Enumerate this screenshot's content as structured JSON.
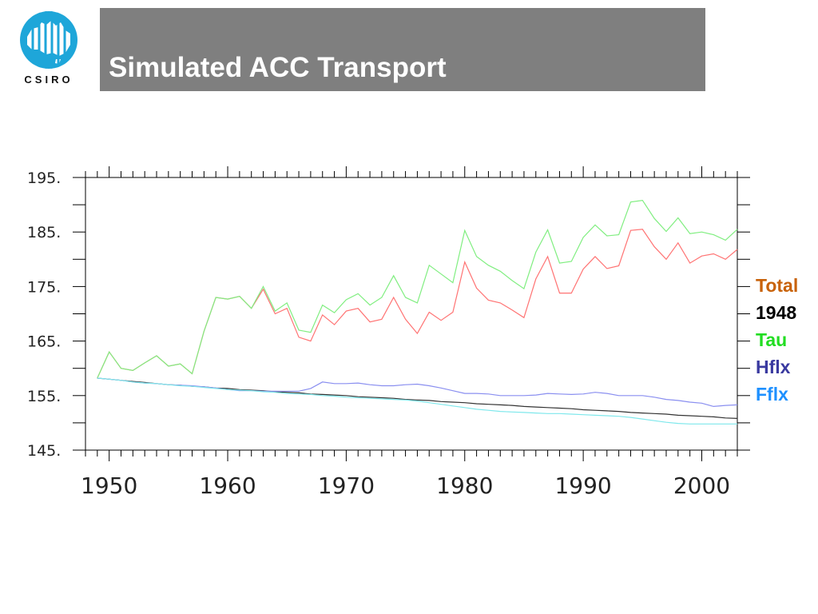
{
  "header": {
    "title": "Simulated ACC Transport",
    "logo_text": "CSIRO",
    "bar_color": "#7f7f7f",
    "logo_color": "#1ea6d9"
  },
  "chart_data": {
    "type": "line",
    "title": "Simulated ACC Transport",
    "xlabel": "",
    "ylabel": "",
    "xlim": [
      1948,
      2003
    ],
    "ylim": [
      145,
      195
    ],
    "x_ticks": [
      1950,
      1960,
      1970,
      1980,
      1990,
      2000
    ],
    "x_tick_labels": [
      "1950",
      "1960",
      "1970",
      "1980",
      "1990",
      "2000"
    ],
    "y_ticks": [
      145,
      155,
      165,
      175,
      185,
      195
    ],
    "y_tick_labels": [
      "145.",
      "155.",
      "165.",
      "175.",
      "185.",
      "195."
    ],
    "grid": false,
    "legend_position": "right",
    "x": [
      1949,
      1950,
      1951,
      1952,
      1953,
      1954,
      1955,
      1956,
      1957,
      1958,
      1959,
      1960,
      1961,
      1962,
      1963,
      1964,
      1965,
      1966,
      1967,
      1968,
      1969,
      1970,
      1971,
      1972,
      1973,
      1974,
      1975,
      1976,
      1977,
      1978,
      1979,
      1980,
      1981,
      1982,
      1983,
      1984,
      1985,
      1986,
      1987,
      1988,
      1989,
      1990,
      1991,
      1992,
      1993,
      1994,
      1995,
      1996,
      1997,
      1998,
      1999,
      2000,
      2001,
      2002,
      2003
    ],
    "series": [
      {
        "name": "Total",
        "color": "#ff7373",
        "values": [
          158.2,
          163,
          160,
          159.6,
          161,
          162.3,
          160.4,
          160.8,
          159,
          166.8,
          173,
          172.7,
          173.2,
          171,
          174.5,
          170,
          171,
          165.7,
          165,
          169.8,
          168,
          170.5,
          171,
          168.5,
          169,
          173,
          169,
          166.4,
          170.3,
          168.8,
          170.3,
          179.5,
          174.7,
          172.5,
          172,
          170.7,
          169.3,
          176.4,
          180.5,
          173.8,
          173.8,
          178.2,
          180.5,
          178.3,
          178.8,
          185.3,
          185.5,
          182.3,
          180,
          183,
          179.3,
          180.6,
          181,
          180,
          181.8
        ]
      },
      {
        "name": "1948",
        "color": "#333333",
        "values": [
          158.2,
          158,
          157.8,
          157.6,
          157.4,
          157.2,
          157,
          156.9,
          156.7,
          156.6,
          156.4,
          156.3,
          156.1,
          156,
          155.9,
          155.7,
          155.6,
          155.5,
          155.3,
          155.2,
          155.1,
          155,
          154.8,
          154.7,
          154.6,
          154.5,
          154.3,
          154.2,
          154.1,
          153.9,
          153.8,
          153.7,
          153.5,
          153.4,
          153.3,
          153.2,
          153,
          152.9,
          152.8,
          152.7,
          152.6,
          152.4,
          152.3,
          152.2,
          152.1,
          151.9,
          151.8,
          151.7,
          151.6,
          151.4,
          151.3,
          151.2,
          151.1,
          150.9,
          150.8
        ]
      },
      {
        "name": "Tau",
        "color": "#80ee80",
        "values": [
          158.2,
          163,
          160,
          159.6,
          161,
          162.3,
          160.4,
          160.8,
          159,
          166.8,
          173,
          172.7,
          173.2,
          171,
          175,
          170.5,
          172,
          167,
          166.6,
          171.6,
          170.2,
          172.6,
          173.7,
          171.6,
          173,
          177,
          173,
          172,
          178.9,
          177.3,
          175.7,
          185.3,
          180.5,
          178.9,
          177.8,
          176.1,
          174.6,
          181.3,
          185.4,
          179.3,
          179.6,
          184,
          186.3,
          184.3,
          184.5,
          190.5,
          190.8,
          187.5,
          185.1,
          187.6,
          184.7,
          185,
          184.5,
          183.5,
          185.5
        ]
      },
      {
        "name": "Hflx",
        "color": "#8a8ff0",
        "values": [
          158.2,
          158,
          157.8,
          157.5,
          157.3,
          157.2,
          157,
          156.9,
          156.8,
          156.6,
          156.4,
          156.1,
          155.9,
          155.9,
          155.8,
          155.8,
          155.8,
          155.8,
          156.3,
          157.5,
          157.2,
          157.2,
          157.3,
          157,
          156.8,
          156.8,
          157,
          157.1,
          156.8,
          156.4,
          155.9,
          155.4,
          155.4,
          155.3,
          155,
          155,
          155,
          155.1,
          155.4,
          155.3,
          155.2,
          155.3,
          155.6,
          155.4,
          155,
          155,
          155,
          154.7,
          154.3,
          154.1,
          153.8,
          153.6,
          153,
          153.2,
          153.3
        ]
      },
      {
        "name": "Fflx",
        "color": "#7fe8ec",
        "values": [
          158.2,
          158,
          157.8,
          157.5,
          157.3,
          157.2,
          157,
          156.8,
          156.7,
          156.5,
          156.3,
          156.1,
          156,
          155.9,
          155.7,
          155.6,
          155.4,
          155.3,
          155.2,
          155,
          154.9,
          154.7,
          154.6,
          154.5,
          154.4,
          154.3,
          154.2,
          154,
          153.7,
          153.4,
          153.1,
          152.8,
          152.5,
          152.3,
          152.1,
          152,
          151.9,
          151.8,
          151.7,
          151.7,
          151.6,
          151.5,
          151.4,
          151.3,
          151.2,
          151,
          150.7,
          150.4,
          150.1,
          149.9,
          149.8,
          149.8,
          149.8,
          149.8,
          149.8
        ]
      }
    ]
  },
  "legend": [
    {
      "label": "Total",
      "color": "#c8620a"
    },
    {
      "label": "1948",
      "color": "#000000"
    },
    {
      "label": "Tau",
      "color": "#22dd22"
    },
    {
      "label": "Hflx",
      "color": "#3a3aa0"
    },
    {
      "label": "Fflx",
      "color": "#1e90ff"
    }
  ]
}
